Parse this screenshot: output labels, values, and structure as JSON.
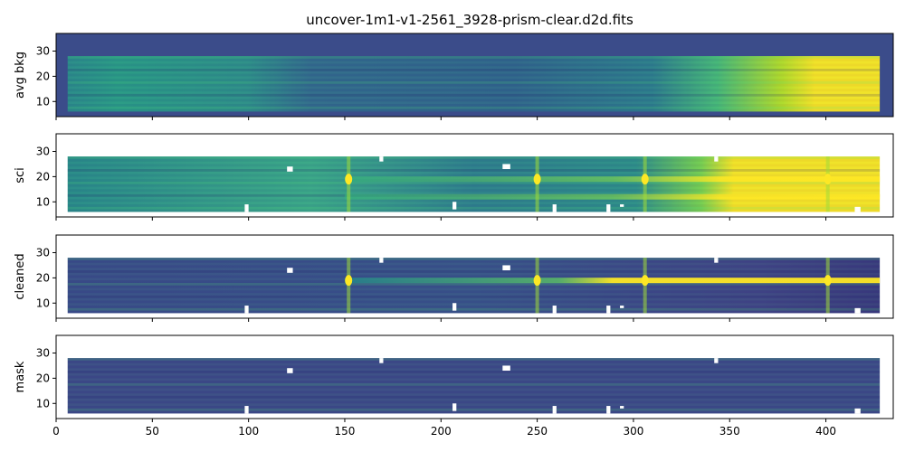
{
  "title": "uncover-1m1-v1-2561_3928-prism-clear.d2d.fits",
  "chart_data": {
    "type": "heatmap",
    "colormap": "viridis",
    "xlim": [
      0,
      435
    ],
    "ylim": [
      4,
      37
    ],
    "x_ticks": [
      0,
      50,
      100,
      150,
      200,
      250,
      300,
      350,
      400
    ],
    "y_ticks": [
      10,
      20,
      30
    ],
    "x_tick_labels_shown_on": "bottom panel only",
    "panels": [
      {
        "ylabel": "avg bkg",
        "background_color": "#3b4c8a",
        "data_extent": {
          "x": [
            6,
            428
          ],
          "y": [
            6,
            28
          ]
        },
        "features": [
          {
            "note": "bright yellow saturation toward red end",
            "x": [
              350,
              428
            ]
          },
          {
            "note": "greener / brighter continuum",
            "x": [
              0,
              100
            ]
          }
        ]
      },
      {
        "ylabel": "sci",
        "background_color": "#ffffff",
        "data_extent": {
          "x": [
            6,
            428
          ],
          "y": [
            6,
            28
          ]
        },
        "emission_lines_x": [
          152,
          250,
          306,
          401
        ],
        "trace_y": [
          12,
          19
        ],
        "bright_region_x": [
          340,
          428
        ]
      },
      {
        "ylabel": "cleaned",
        "background_color": "#ffffff",
        "data_extent": {
          "x": [
            6,
            428
          ],
          "y": [
            6,
            28
          ]
        },
        "emission_lines_x": [
          152,
          250,
          306,
          401
        ],
        "trace_y": [
          19
        ]
      },
      {
        "ylabel": "mask",
        "background_color": "#ffffff",
        "data_extent": {
          "x": [
            6,
            428
          ],
          "y": [
            6,
            28
          ]
        },
        "mask_value_color": "#3e4a89"
      }
    ]
  }
}
